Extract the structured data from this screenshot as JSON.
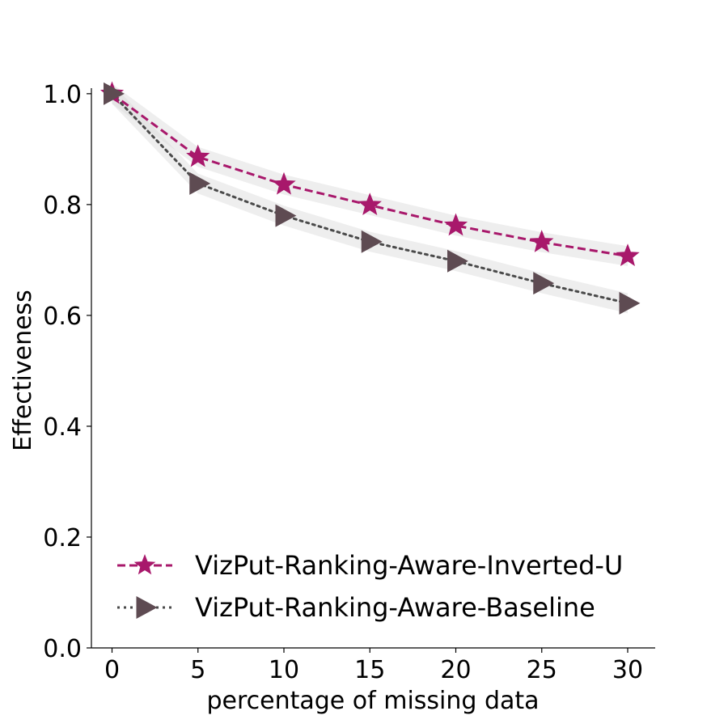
{
  "chart_data": {
    "type": "line",
    "xlabel": "percentage of missing data",
    "ylabel": "Effectiveness",
    "x": [
      0,
      5,
      10,
      15,
      20,
      25,
      30
    ],
    "xlim": [
      -1.2,
      31.6
    ],
    "ylim": [
      0,
      1.01
    ],
    "xticks": [
      0,
      5,
      10,
      15,
      20,
      25,
      30
    ],
    "yticks": [
      0.0,
      0.2,
      0.4,
      0.6,
      0.8,
      1.0
    ],
    "xtick_labels": [
      "0",
      "5",
      "10",
      "15",
      "20",
      "25",
      "30"
    ],
    "ytick_labels": [
      "0.0",
      "0.2",
      "0.4",
      "0.6",
      "0.8",
      "1.0"
    ],
    "grid": false,
    "legend_position": "lower-left",
    "series": [
      {
        "name": "VizPut-Ranking-Aware-Inverted-U",
        "values": [
          1.0,
          0.886,
          0.836,
          0.799,
          0.762,
          0.732,
          0.707
        ],
        "band": 0.018,
        "color": "#a8186b",
        "line_style": "dashed",
        "marker": "star"
      },
      {
        "name": "VizPut-Ranking-Aware-Baseline",
        "values": [
          1.0,
          0.838,
          0.78,
          0.733,
          0.698,
          0.658,
          0.622
        ],
        "band": 0.018,
        "color": "#4a4a4a",
        "marker_color": "#5e4b52",
        "line_style": "dotted",
        "marker": "triangle-right"
      }
    ],
    "band_color": "#d9d9d9"
  }
}
